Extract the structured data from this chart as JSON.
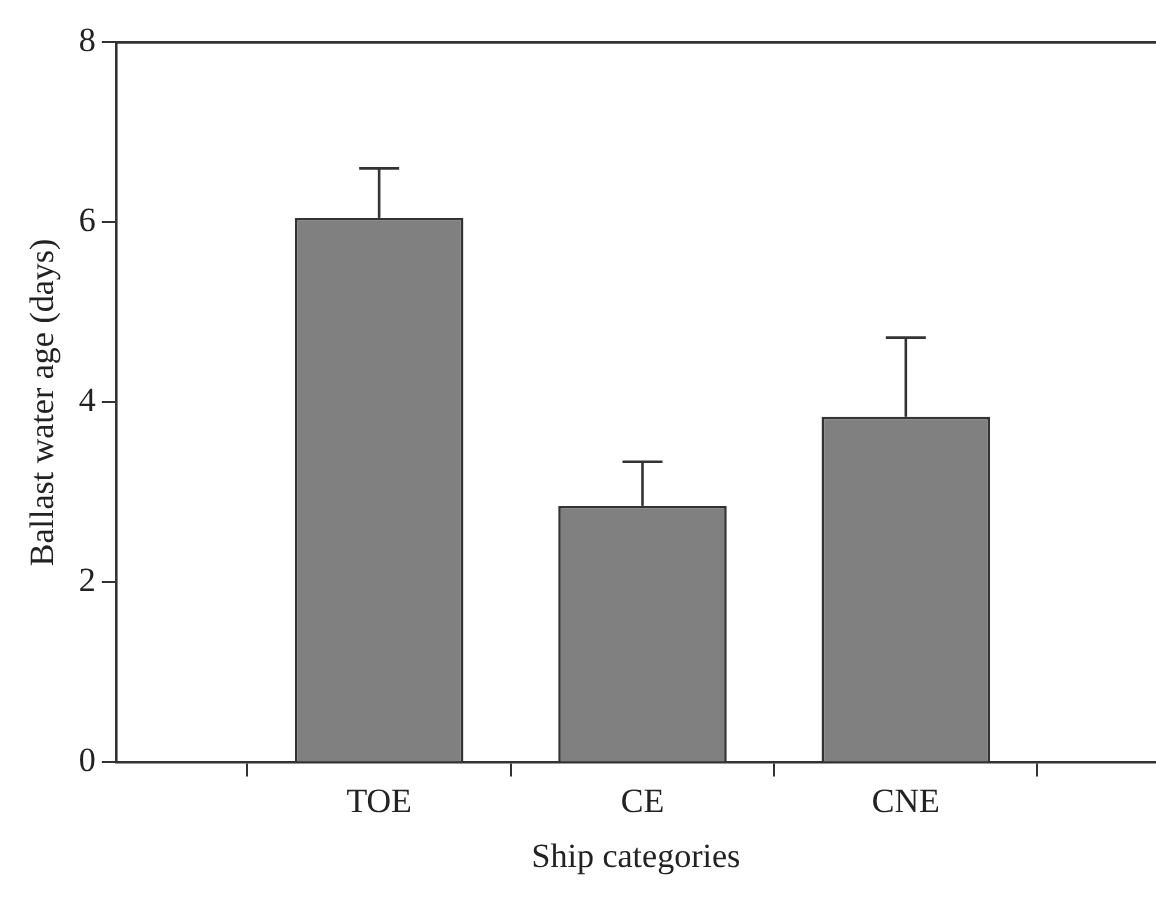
{
  "chart_data": {
    "type": "bar",
    "xlabel": "Ship categories",
    "ylabel": "Ballast water age (days)",
    "categories": [
      "TOE",
      "CE",
      "CNE"
    ],
    "values": [
      6.05,
      2.85,
      3.84
    ],
    "errors": [
      [
        6.05,
        6.6
      ],
      [
        2.85,
        3.34
      ],
      [
        3.84,
        4.72
      ]
    ],
    "color": "#808080",
    "ylim": [
      0,
      8
    ],
    "yticks": [
      0,
      2,
      4,
      6,
      8
    ],
    "grid": false,
    "legend": false
  }
}
